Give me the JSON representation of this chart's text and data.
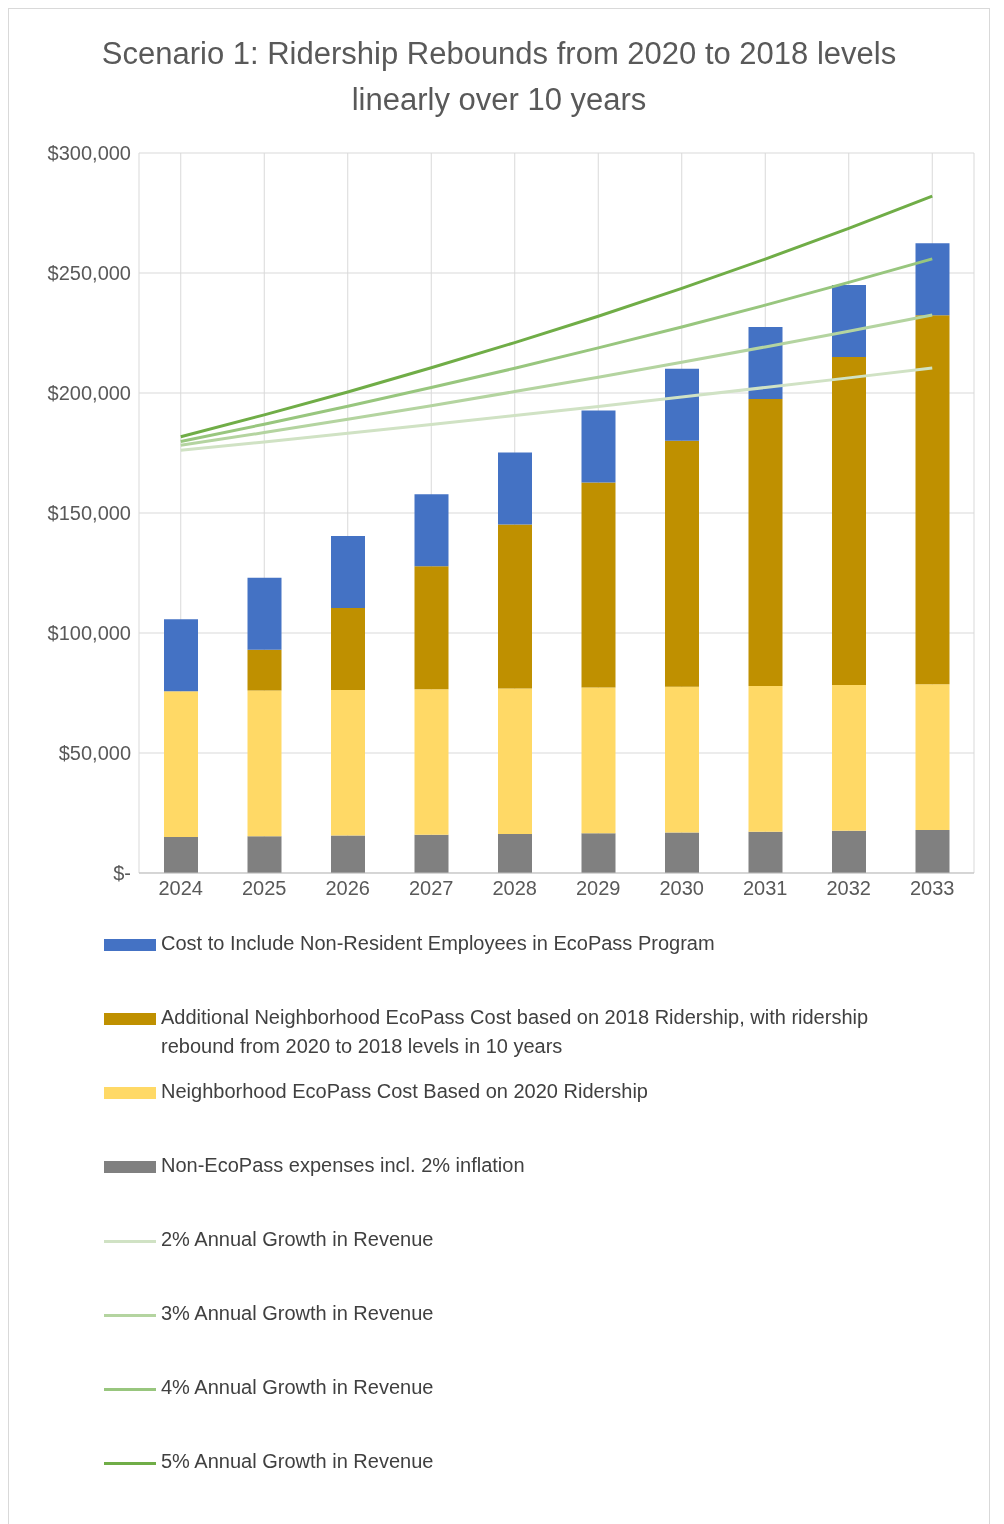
{
  "chart_data": {
    "type": "bar",
    "title": "Scenario 1: Ridership Rebounds from 2020 to 2018 levels linearly over 10 years",
    "categories": [
      "2024",
      "2025",
      "2026",
      "2027",
      "2028",
      "2029",
      "2030",
      "2031",
      "2032",
      "2033"
    ],
    "stacked": true,
    "series": [
      {
        "name": "Non-EcoPass expenses incl. 2% inflation",
        "color": "#808080",
        "values": [
          15000,
          15300,
          15600,
          15900,
          16200,
          16600,
          16900,
          17200,
          17600,
          17900
        ]
      },
      {
        "name": "Neighborhood EcoPass Cost Based on 2020 Ridership",
        "color": "#ffd966",
        "values": [
          60700,
          60700,
          60700,
          60700,
          60700,
          60700,
          60700,
          60700,
          60700,
          60700
        ]
      },
      {
        "name": "Additional Neighborhood EcoPass Cost based on 2018 Ridership, with ridership rebound from 2020 to 2018 levels in 10 years",
        "color": "#bf9000",
        "values": [
          0,
          17000,
          34100,
          51200,
          68300,
          85400,
          102500,
          119600,
          136700,
          153800
        ]
      },
      {
        "name": "Cost to Include Non-Resident Employees in EcoPass Program",
        "color": "#4472c4",
        "values": [
          30000,
          30000,
          30000,
          30000,
          30000,
          30000,
          30000,
          30000,
          30000,
          30000
        ]
      },
      {
        "name": "2% Annual Growth in Revenue",
        "type": "line",
        "color": "#d0e2c4",
        "values": [
          176100,
          179600,
          183200,
          186900,
          190600,
          194400,
          198300,
          202300,
          206300,
          210400
        ]
      },
      {
        "name": "3% Annual Growth in Revenue",
        "type": "line",
        "color": "#b4d4a0",
        "values": [
          178200,
          183500,
          189100,
          194700,
          200600,
          206600,
          212800,
          219200,
          225700,
          232500
        ]
      },
      {
        "name": "4% Annual Growth in Revenue",
        "type": "line",
        "color": "#98c67e",
        "values": [
          179800,
          187000,
          194500,
          202300,
          210300,
          218800,
          227500,
          236600,
          246100,
          255900
        ]
      },
      {
        "name": "5% Annual Growth in Revenue",
        "type": "line",
        "color": "#70ad47",
        "values": [
          181800,
          190900,
          200400,
          210500,
          221000,
          232000,
          243600,
          255800,
          268600,
          282000
        ]
      }
    ],
    "ylim": [
      0,
      300000
    ],
    "yticks": [
      {
        "value": 0,
        "label": "$-"
      },
      {
        "value": 50000,
        "label": "$50,000"
      },
      {
        "value": 100000,
        "label": "$100,000"
      },
      {
        "value": 150000,
        "label": "$150,000"
      },
      {
        "value": 200000,
        "label": "$200,000"
      },
      {
        "value": 250000,
        "label": "$250,000"
      },
      {
        "value": 300000,
        "label": "$300,000"
      }
    ],
    "grid": true,
    "legend": "bottom",
    "marker": "none",
    "line_style": "solid"
  }
}
